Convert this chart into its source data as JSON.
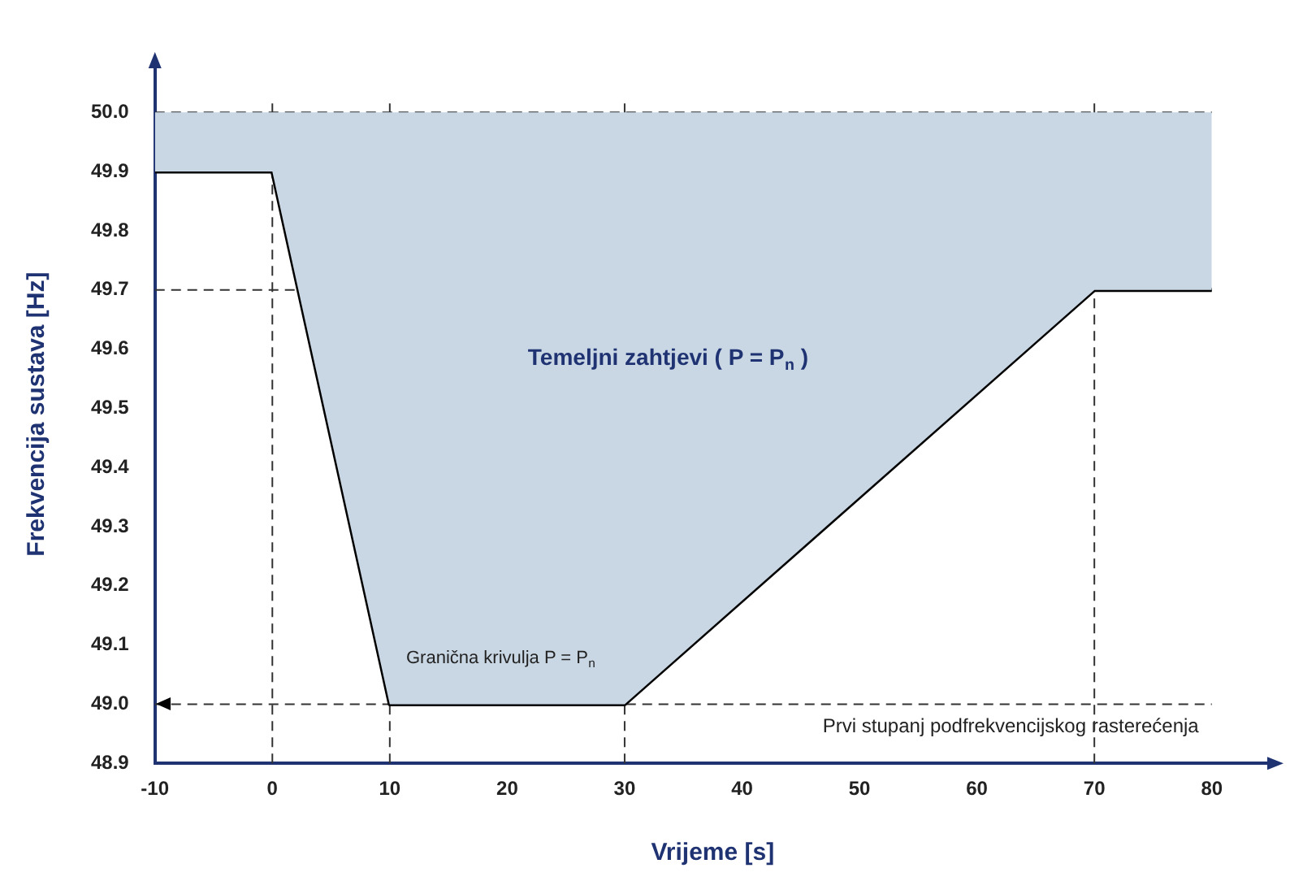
{
  "chart_data": {
    "type": "line",
    "xlabel": "Vrijeme [s]",
    "ylabel": "Frekvencija sustava [Hz]",
    "series": [
      {
        "x": [
          -10,
          0,
          10,
          30,
          70,
          80
        ],
        "values": [
          49.9,
          49.9,
          49.0,
          49.0,
          49.7,
          49.7
        ],
        "color": "#000000",
        "lower": [
          49.9,
          49.9,
          49.0,
          49.0,
          49.7,
          49.7
        ],
        "upper": [
          50.0,
          50.0,
          50.0,
          50.0,
          50.0,
          50.0
        ]
      }
    ],
    "xlim": [
      -10,
      85
    ],
    "xticks": [
      -10,
      0,
      10,
      20,
      30,
      40,
      50,
      60,
      70,
      80
    ],
    "ylim": [
      48.9,
      50.08
    ],
    "yticks": [
      48.9,
      {
        "value": 49.0,
        "label": "49.0"
      },
      49.1,
      49.2,
      49.3,
      49.4,
      49.5,
      49.6,
      49.7,
      49.8,
      49.9,
      {
        "value": 50.0,
        "label": "50.0"
      }
    ],
    "ref_lines": [
      {
        "axis": "y",
        "value": 50.0,
        "line_style": "dashed",
        "color": "#333333"
      },
      {
        "axis": "y",
        "value": 49.7,
        "line_style": "dashed",
        "color": "#333333"
      },
      {
        "axis": "y",
        "value": 49.0,
        "line_style": "dashed",
        "color": "#333333",
        "label": "Prvi stupanj podfrekvencijskog rasterećenja"
      },
      {
        "axis": "x",
        "value": 0,
        "line_style": "dashed",
        "color": "#333333"
      },
      {
        "axis": "x",
        "value": 10,
        "line_style": "dashed",
        "color": "#333333"
      },
      {
        "axis": "x",
        "value": 30,
        "line_style": "dashed",
        "color": "#333333"
      },
      {
        "axis": "x",
        "value": 70,
        "line_style": "dashed",
        "color": "#333333"
      }
    ],
    "annotations": [
      "Temeljni zahtjevi ( P = P$_{n}$ )",
      "Granična krivulja P = P$_{n}$"
    ],
    "grid": false,
    "legend": false,
    "marker": "none",
    "line_style": "solid"
  }
}
